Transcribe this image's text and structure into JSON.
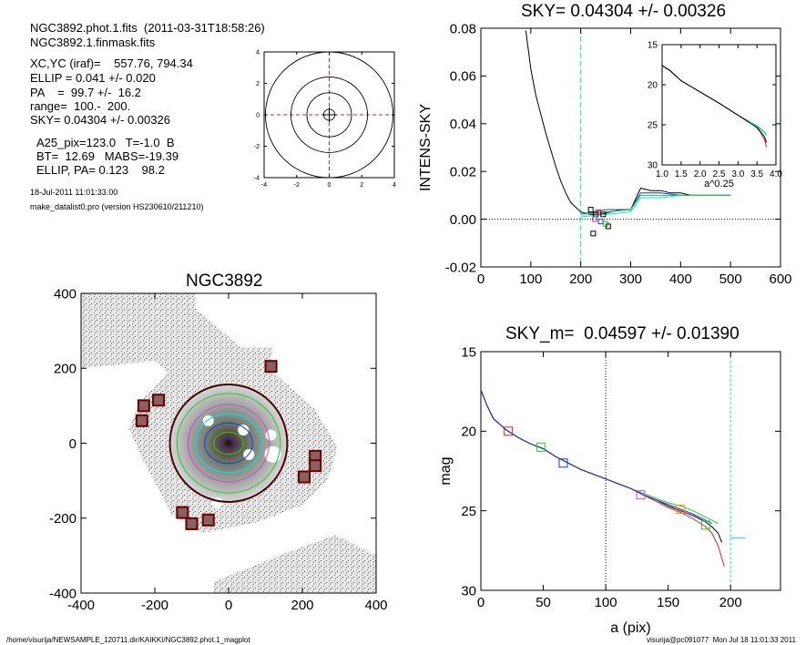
{
  "header": {
    "line1": "NGC3892.phot.1.fits  (2011-03-31T18:58:26)",
    "line2": "NGC3892.1.finmask.fits",
    "xcyc": "XC,YC (iraf)=    557.76, 794.34",
    "ellip": "ELLIP = 0.041 +/- 0.020",
    "pa": "PA    =  99.7 +/-  16.2",
    "range": "range=  100.-  200.",
    "sky": "SKY= 0.04304 +/- 0.00326",
    "a25": "A25_pix=123.0   T=-1.0  B",
    "bt": "BT=  12.69   MABS=-19.39",
    "ellip_pa": "ELLIP, PA= 0.123    98.2",
    "date": "18-Jul-2011 11:01:33.00",
    "prog": "make_datalist0.pro (version HS230610/211210)"
  },
  "footer": {
    "path": "/home/visurija/NEWSAMPLE_120711.dir/KAIKKI/NGC3892.phot.1_magplot",
    "user": "visurija@pc091077  Mon Jul 18 11:01:33 2011"
  },
  "colors": {
    "cyan": "#00e5ee",
    "green": "#22cc22",
    "blue": "#2233dd",
    "red": "#dd2222",
    "magenta": "#cc44cc",
    "darkred": "#880000"
  },
  "chart_data": [
    {
      "type": "line",
      "panel": "small contour plot",
      "xlim": [
        -4,
        4
      ],
      "ylim": [
        -4,
        4
      ],
      "xticks": [
        "-4",
        "-2",
        "0",
        "2",
        "4"
      ],
      "yticks": [
        "-4",
        "-2",
        "0",
        "2",
        "4"
      ],
      "contours": [
        {
          "r": 0.35
        },
        {
          "r": 1.4
        },
        {
          "r": 2.4
        },
        {
          "r": 4.0
        }
      ]
    },
    {
      "type": "line",
      "panel": "sky profile",
      "title": "SKY= 0.04304 +/- 0.00326",
      "ylabel": "INTENS-SKY",
      "xlim": [
        0,
        600
      ],
      "ylim": [
        -0.02,
        0.08
      ],
      "xticks": [
        "0",
        "100",
        "200",
        "300",
        "400",
        "500",
        "600"
      ],
      "yticks": [
        "-0.02",
        "0.00",
        "0.02",
        "0.04",
        "0.06",
        "0.08"
      ],
      "vline_x": 200,
      "series": [
        {
          "color": "#000000",
          "x": [
            90,
            100,
            110,
            120,
            130,
            140,
            150,
            160,
            170,
            180,
            190,
            200,
            210,
            220,
            240,
            260,
            280,
            300,
            320,
            340,
            360,
            380,
            400,
            420,
            440,
            460,
            480,
            500
          ],
          "y": [
            0.079,
            0.063,
            0.052,
            0.044,
            0.036,
            0.029,
            0.022,
            0.016,
            0.011,
            0.007,
            0.005,
            0.003,
            0.0025,
            0.002,
            0.002,
            0.003,
            0.004,
            0.004,
            0.013,
            0.012,
            0.012,
            0.011,
            0.011,
            0.01,
            0.01,
            0.01,
            0.01,
            0.01
          ]
        },
        {
          "color": "#2233dd",
          "x": [
            200,
            250,
            300,
            320,
            360,
            400,
            500
          ],
          "y": [
            0.002,
            0.004,
            0.004,
            0.011,
            0.011,
            0.01,
            0.01
          ]
        },
        {
          "color": "#00e5ee",
          "x": [
            200,
            250,
            300,
            320,
            360,
            400,
            500
          ],
          "y": [
            0.001,
            0.002,
            0.003,
            0.009,
            0.009,
            0.01,
            0.01
          ]
        },
        {
          "color": "#22cc22",
          "x": [
            200,
            250,
            300,
            320,
            360,
            400,
            500
          ],
          "y": [
            0.002,
            0.003,
            0.004,
            0.01,
            0.01,
            0.01,
            0.01
          ]
        }
      ],
      "squares": [
        {
          "x": 220,
          "y": 0.004,
          "c": "#000000"
        },
        {
          "x": 225,
          "y": -0.006,
          "c": "#000000"
        },
        {
          "x": 230,
          "y": 0.002,
          "c": "#000000"
        },
        {
          "x": 235,
          "y": 0.003,
          "c": "#dd2222"
        },
        {
          "x": 240,
          "y": -0.001,
          "c": "#2233dd"
        },
        {
          "x": 245,
          "y": 0.002,
          "c": "#000000"
        },
        {
          "x": 250,
          "y": -0.002,
          "c": "#22cc22"
        },
        {
          "x": 255,
          "y": -0.003,
          "c": "#000000"
        },
        {
          "x": 228,
          "y": 0.0,
          "c": "#cc44cc"
        }
      ],
      "inset": {
        "xlabel": "a^0.25",
        "xlim": [
          1.0,
          4.0
        ],
        "ylim": [
          15,
          30
        ],
        "xticks": [
          "1.0",
          "1.5",
          "2.0",
          "2.5",
          "3.0",
          "3.5",
          "4.0"
        ],
        "yticks": [
          "15",
          "20",
          "25",
          "30"
        ],
        "series": [
          {
            "color": "#22cc22",
            "x": [
              1.0,
              1.2,
              1.5,
              2.0,
              2.5,
              3.0,
              3.3,
              3.5,
              3.6,
              3.7,
              3.75
            ],
            "y": [
              17.6,
              18.2,
              19.5,
              20.9,
              22.3,
              23.8,
              24.6,
              25.1,
              25.5,
              25.9,
              26.3
            ]
          },
          {
            "color": "#dd2222",
            "x": [
              1.0,
              1.2,
              1.5,
              2.0,
              2.5,
              3.0,
              3.3,
              3.5,
              3.6,
              3.7,
              3.75
            ],
            "y": [
              17.6,
              18.2,
              19.5,
              20.9,
              22.3,
              23.8,
              24.7,
              25.4,
              26.0,
              26.9,
              27.8
            ]
          },
          {
            "color": "#000000",
            "x": [
              1.0,
              1.2,
              1.5,
              2.0,
              2.5,
              3.0,
              3.3,
              3.5,
              3.6,
              3.7,
              3.75
            ],
            "y": [
              17.6,
              18.2,
              19.5,
              20.9,
              22.3,
              23.8,
              24.7,
              25.3,
              25.9,
              26.5,
              27.2
            ]
          },
          {
            "color": "#00e5ee",
            "x": [
              3.3,
              3.5,
              3.6,
              3.7,
              3.75
            ],
            "y": [
              24.6,
              25.2,
              25.6,
              26.0,
              26.4
            ]
          }
        ]
      }
    },
    {
      "type": "heatmap",
      "panel": "galaxy image",
      "title": "NGC3892",
      "xlim": [
        -400,
        400
      ],
      "ylim": [
        -400,
        400
      ],
      "xticks": [
        "-400",
        "-200",
        "0",
        "200",
        "400"
      ],
      "yticks": [
        "-400",
        "-200",
        "0",
        "200",
        "400"
      ],
      "ellipses": [
        {
          "rx": 20,
          "ry": 14,
          "c": "#2233dd"
        },
        {
          "rx": 40,
          "ry": 30,
          "c": "#22cc22"
        },
        {
          "rx": 65,
          "ry": 55,
          "c": "#2233dd"
        },
        {
          "rx": 90,
          "ry": 80,
          "c": "#00e5ee"
        },
        {
          "rx": 110,
          "ry": 105,
          "c": "#cc44cc"
        },
        {
          "rx": 140,
          "ry": 135,
          "c": "#22cc22"
        },
        {
          "rx": 158,
          "ry": 158,
          "c": "#000000"
        }
      ],
      "masks": [
        {
          "x": 115,
          "y": 205
        },
        {
          "x": -230,
          "y": 100
        },
        {
          "x": -190,
          "y": 115
        },
        {
          "x": -235,
          "y": 60
        },
        {
          "x": 235,
          "y": -35
        },
        {
          "x": 235,
          "y": -60
        },
        {
          "x": 205,
          "y": -90
        },
        {
          "x": -125,
          "y": -185
        },
        {
          "x": -100,
          "y": -215
        },
        {
          "x": -55,
          "y": -205
        }
      ]
    },
    {
      "type": "line",
      "panel": "magnitude profile",
      "title": "SKY_m=  0.04597 +/- 0.01390",
      "xlabel": "a (pix)",
      "ylabel": "mag",
      "xlim": [
        0,
        240
      ],
      "ylim": [
        15,
        30
      ],
      "xticks": [
        "0",
        "50",
        "100",
        "150",
        "200"
      ],
      "yticks": [
        "15",
        "20",
        "25",
        "30"
      ],
      "vlines": [
        {
          "x": 100,
          "c": "#000000"
        },
        {
          "x": 200,
          "c": "#00e5ee"
        }
      ],
      "series": [
        {
          "color": "#22cc22",
          "x": [
            0,
            5,
            10,
            20,
            30,
            40,
            50,
            60,
            70,
            80,
            90,
            100,
            110,
            120,
            130,
            140,
            150,
            160,
            170,
            180,
            185,
            190
          ],
          "y": [
            17.4,
            18.4,
            19.2,
            19.9,
            20.4,
            20.8,
            21.1,
            21.6,
            22.0,
            22.4,
            22.7,
            23.0,
            23.3,
            23.6,
            23.9,
            24.2,
            24.5,
            24.7,
            25.0,
            25.4,
            25.6,
            25.8
          ]
        },
        {
          "color": "#dd2222",
          "x": [
            0,
            5,
            10,
            20,
            30,
            40,
            50,
            60,
            70,
            80,
            90,
            100,
            110,
            120,
            130,
            140,
            150,
            160,
            170,
            180,
            185,
            190,
            195
          ],
          "y": [
            17.4,
            18.4,
            19.2,
            19.9,
            20.4,
            20.8,
            21.1,
            21.6,
            22.0,
            22.4,
            22.7,
            23.0,
            23.3,
            23.6,
            24.0,
            24.4,
            24.8,
            25.1,
            25.5,
            26.0,
            26.4,
            27.2,
            28.5
          ]
        },
        {
          "color": "#000000",
          "x": [
            0,
            5,
            10,
            20,
            30,
            40,
            50,
            60,
            70,
            80,
            90,
            100,
            110,
            120,
            130,
            140,
            150,
            160,
            170,
            180,
            185,
            190,
            193
          ],
          "y": [
            17.4,
            18.4,
            19.2,
            19.9,
            20.4,
            20.8,
            21.1,
            21.6,
            22.0,
            22.4,
            22.7,
            23.0,
            23.3,
            23.6,
            24.0,
            24.3,
            24.7,
            25.0,
            25.3,
            25.7,
            26.0,
            26.4,
            27.0
          ]
        },
        {
          "color": "#2233dd",
          "x": [
            0,
            5,
            10,
            20,
            30,
            40,
            50,
            60,
            70,
            80,
            90,
            100,
            110,
            120,
            130,
            140,
            150,
            160,
            170,
            180,
            185
          ],
          "y": [
            17.4,
            18.4,
            19.2,
            19.9,
            20.4,
            20.8,
            21.1,
            21.6,
            22.0,
            22.4,
            22.7,
            23.0,
            23.3,
            23.6,
            24.0,
            24.3,
            24.6,
            24.9,
            25.2,
            25.6,
            25.8
          ]
        },
        {
          "color": "#00e5ee",
          "x": [
            200,
            212
          ],
          "y": [
            26.7,
            26.7
          ]
        }
      ],
      "squares": [
        {
          "x": 22,
          "y": 20.0,
          "c": "#dd2222"
        },
        {
          "x": 48,
          "y": 21.0,
          "c": "#22cc22"
        },
        {
          "x": 66,
          "y": 22.0,
          "c": "#2233dd"
        },
        {
          "x": 128,
          "y": 24.0,
          "c": "#cc44cc"
        },
        {
          "x": 160,
          "y": 24.9,
          "c": "#ff8800"
        },
        {
          "x": 180,
          "y": 25.9,
          "c": "#22cc22"
        }
      ]
    }
  ]
}
